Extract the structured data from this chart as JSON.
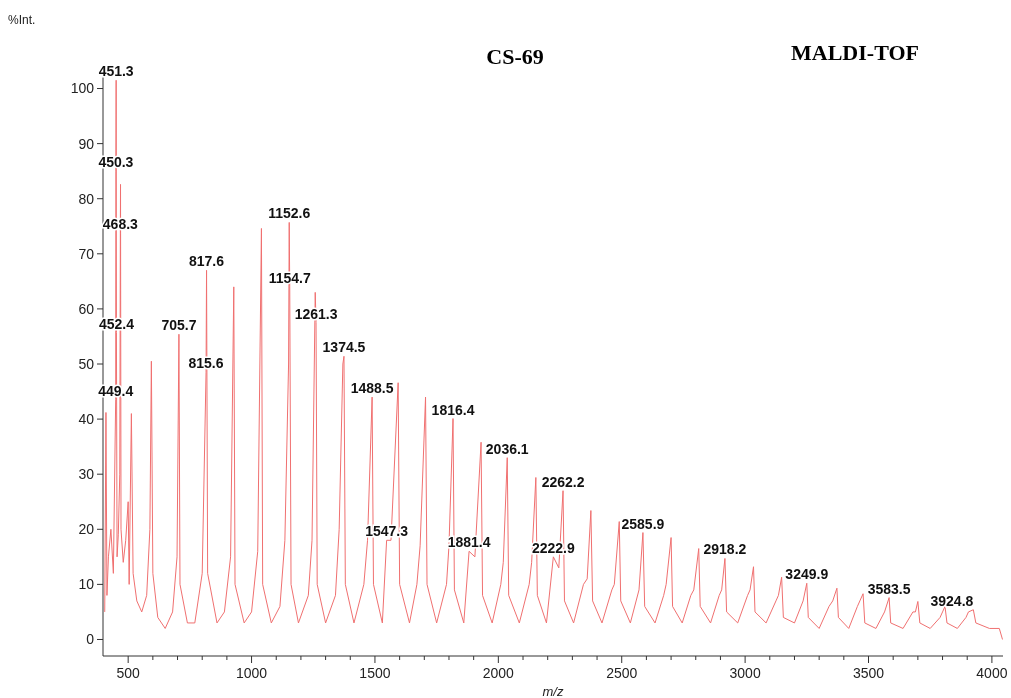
{
  "chart_data": {
    "type": "line",
    "title": "CS-69",
    "subtitle": "MALDI-TOF",
    "xlabel": "m/z",
    "ylabel": "%Int.",
    "xlim": [
      398,
      4045
    ],
    "ylim": [
      -3,
      103
    ],
    "xticks": [
      {
        "value": 500,
        "label": "500"
      },
      {
        "value": 600,
        "label": null
      },
      {
        "value": 700,
        "label": null
      },
      {
        "value": 800,
        "label": null
      },
      {
        "value": 900,
        "label": null
      },
      {
        "value": 1000,
        "label": "1000"
      },
      {
        "value": 1100,
        "label": null
      },
      {
        "value": 1200,
        "label": null
      },
      {
        "value": 1300,
        "label": null
      },
      {
        "value": 1400,
        "label": null
      },
      {
        "value": 1500,
        "label": "1500"
      },
      {
        "value": 1600,
        "label": null
      },
      {
        "value": 1700,
        "label": null
      },
      {
        "value": 1800,
        "label": null
      },
      {
        "value": 1900,
        "label": null
      },
      {
        "value": 2000,
        "label": "2000"
      },
      {
        "value": 2100,
        "label": null
      },
      {
        "value": 2200,
        "label": null
      },
      {
        "value": 2300,
        "label": null
      },
      {
        "value": 2400,
        "label": null
      },
      {
        "value": 2500,
        "label": "2500"
      },
      {
        "value": 2600,
        "label": null
      },
      {
        "value": 2700,
        "label": null
      },
      {
        "value": 2800,
        "label": null
      },
      {
        "value": 2900,
        "label": null
      },
      {
        "value": 3000,
        "label": "3000"
      },
      {
        "value": 3100,
        "label": null
      },
      {
        "value": 3200,
        "label": null
      },
      {
        "value": 3300,
        "label": null
      },
      {
        "value": 3400,
        "label": null
      },
      {
        "value": 3500,
        "label": "3500"
      },
      {
        "value": 3600,
        "label": null
      },
      {
        "value": 3700,
        "label": null
      },
      {
        "value": 3800,
        "label": null
      },
      {
        "value": 3900,
        "label": null
      },
      {
        "value": 4000,
        "label": "4000"
      }
    ],
    "yticks": [
      0,
      10,
      20,
      30,
      40,
      50,
      60,
      70,
      80,
      90,
      100
    ],
    "grid": false,
    "marker": "none",
    "line_style": "solid",
    "series": [
      {
        "color": "#f07070",
        "x": [
          405,
          410,
          414,
          420,
          430,
          440,
          449.4,
          450.3,
          451.3,
          452.4,
          455,
          460,
          466,
          468.3,
          469,
          471,
          480,
          490,
          500,
          504,
          513,
          520,
          535,
          555,
          575,
          588,
          594,
          600,
          620,
          650,
          680,
          698,
          705.7,
          710,
          740,
          770,
          800,
          815.6,
          817.6,
          822,
          860,
          890,
          915,
          928,
          933,
          970,
          1000,
          1025,
          1040,
          1045,
          1080,
          1115,
          1135,
          1150,
          1152.6,
          1154.7,
          1160,
          1190,
          1230,
          1245,
          1258,
          1261.3,
          1266,
          1300,
          1340,
          1355,
          1370,
          1374.5,
          1380,
          1415,
          1455,
          1470,
          1488.5,
          1494,
          1530,
          1547.3,
          1565,
          1594,
          1600,
          1640,
          1670,
          1683,
          1705,
          1711,
          1750,
          1790,
          1800,
          1816.4,
          1822,
          1860,
          1881.4,
          1905,
          1930,
          1936,
          1975,
          2010,
          2020,
          2036.1,
          2042,
          2085,
          2125,
          2135,
          2152,
          2158,
          2195,
          2222.9,
          2245,
          2262.2,
          2268,
          2305,
          2345,
          2360,
          2375,
          2382,
          2420,
          2460,
          2470,
          2490,
          2496,
          2535,
          2570,
          2585.9,
          2593,
          2635,
          2670,
          2680,
          2700,
          2706,
          2745,
          2780,
          2792,
          2812,
          2818,
          2860,
          2895,
          2905,
          2918.2,
          2925,
          2970,
          3010,
          3020,
          3034,
          3040,
          3085,
          3125,
          3135,
          3148,
          3155,
          3200,
          3235,
          3249.9,
          3256,
          3300,
          3340,
          3355,
          3372,
          3378,
          3420,
          3455,
          3465,
          3478,
          3485,
          3530,
          3565,
          3583.5,
          3590,
          3640,
          3680,
          3690,
          3700,
          3708,
          3750,
          3790,
          3800,
          3810,
          3818,
          3860,
          3895,
          3905,
          3924.8,
          3935,
          3990,
          4030,
          4043
        ],
        "values": [
          5,
          41.2,
          8,
          15,
          20,
          12,
          43.5,
          85,
          101.5,
          55.7,
          15,
          19,
          30,
          73.7,
          82.6,
          20,
          14,
          18,
          25,
          10,
          41,
          12,
          7,
          5,
          8,
          20,
          50.5,
          12,
          4,
          2,
          5,
          15,
          55.4,
          10,
          3,
          3,
          12,
          48.5,
          67,
          12,
          3,
          5,
          15,
          64,
          10,
          3,
          5,
          16,
          74.6,
          10,
          3,
          6,
          18,
          50,
          75.7,
          64,
          10,
          3,
          8,
          18,
          63,
          57.5,
          10,
          3,
          8,
          20,
          50,
          51.4,
          10,
          3,
          10,
          18,
          44,
          10,
          3,
          18,
          18,
          46.6,
          10,
          3,
          10,
          17,
          44,
          10,
          3,
          10,
          17,
          40.1,
          9,
          3,
          16,
          15,
          35.8,
          8,
          3,
          10,
          14,
          33,
          8,
          3,
          10,
          14,
          29.4,
          8,
          3,
          15,
          13,
          27,
          7,
          3,
          10,
          11,
          23.4,
          7,
          3,
          9,
          10,
          21.4,
          7,
          3,
          9,
          19.4,
          6,
          3,
          8,
          10,
          18.5,
          6,
          3,
          8,
          9,
          16.5,
          6,
          3,
          8,
          9,
          14.7,
          5,
          3,
          8,
          9,
          13.2,
          5,
          3,
          7,
          8,
          11.3,
          4,
          3,
          7,
          10.2,
          4,
          2,
          6,
          7,
          9.3,
          4,
          2,
          6,
          7,
          8.3,
          3,
          2,
          5,
          7.6,
          3,
          2,
          5,
          5,
          6.9,
          3,
          2,
          4,
          5,
          6,
          3,
          2,
          4,
          5,
          5.4,
          3,
          2,
          2,
          0
        ]
      }
    ],
    "annotations": [
      {
        "text": "451.3",
        "x": 451.3,
        "y": 101.5
      },
      {
        "text": "450.3",
        "x": 450.3,
        "y": 85
      },
      {
        "text": "468.3",
        "x": 468.3,
        "y": 73.7
      },
      {
        "text": "452.4",
        "x": 452.4,
        "y": 55.7
      },
      {
        "text": "449.4",
        "x": 449.4,
        "y": 43.5
      },
      {
        "text": "705.7",
        "x": 705.7,
        "y": 55.4
      },
      {
        "text": "817.6",
        "x": 817.6,
        "y": 67
      },
      {
        "text": "815.6",
        "x": 815.6,
        "y": 48.5
      },
      {
        "text": "1152.6",
        "x": 1152.6,
        "y": 75.7
      },
      {
        "text": "1154.7",
        "x": 1154.7,
        "y": 64
      },
      {
        "text": "1261.3",
        "x": 1261.3,
        "y": 57.5
      },
      {
        "text": "1374.5",
        "x": 1374.5,
        "y": 51.4
      },
      {
        "text": "1488.5",
        "x": 1488.5,
        "y": 44
      },
      {
        "text": "1547.3",
        "x": 1547.3,
        "y": 18
      },
      {
        "text": "1816.4",
        "x": 1816.4,
        "y": 40.1
      },
      {
        "text": "1881.4",
        "x": 1881.4,
        "y": 16
      },
      {
        "text": "2036.1",
        "x": 2036.1,
        "y": 33
      },
      {
        "text": "2262.2",
        "x": 2262.2,
        "y": 27
      },
      {
        "text": "2222.9",
        "x": 2222.9,
        "y": 15
      },
      {
        "text": "2585.9",
        "x": 2585.9,
        "y": 19.4
      },
      {
        "text": "2918.2",
        "x": 2918.2,
        "y": 14.7
      },
      {
        "text": "3249.9",
        "x": 3249.9,
        "y": 10.2
      },
      {
        "text": "3583.5",
        "x": 3583.5,
        "y": 7.6
      },
      {
        "text": "3924.8",
        "x": 3924.8,
        "y": 5.4
      }
    ]
  }
}
